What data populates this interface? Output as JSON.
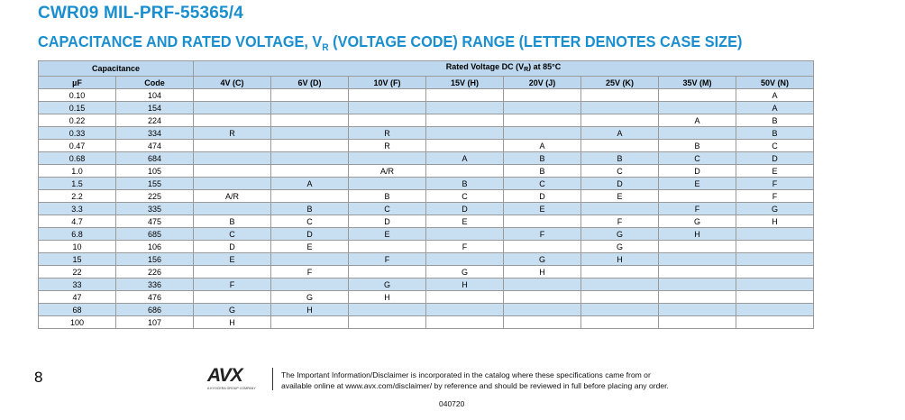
{
  "header": {
    "title": "CWR09 MIL-PRF-55365/4",
    "subtitle_prefix": "CAPACITANCE AND RATED VOLTAGE, V",
    "subtitle_sub": "R",
    "subtitle_suffix": " (VOLTAGE CODE) RANGE (LETTER DENOTES CASE SIZE)"
  },
  "table": {
    "group_capacitance": "Capacitance",
    "group_voltage_prefix": "Rated Voltage DC (V",
    "group_voltage_sub": "R",
    "group_voltage_suffix": ") at 85°C",
    "columns": [
      "µF",
      "Code",
      "4V (C)",
      "6V (D)",
      "10V (F)",
      "15V (H)",
      "20V (J)",
      "25V (K)",
      "35V (M)",
      "50V (N)"
    ],
    "rows": [
      [
        "0.10",
        "104",
        "",
        "",
        "",
        "",
        "",
        "",
        "",
        "A"
      ],
      [
        "0.15",
        "154",
        "",
        "",
        "",
        "",
        "",
        "",
        "",
        "A"
      ],
      [
        "0.22",
        "224",
        "",
        "",
        "",
        "",
        "",
        "",
        "A",
        "B"
      ],
      [
        "0.33",
        "334",
        "R",
        "",
        "R",
        "",
        "",
        "A",
        "",
        "B"
      ],
      [
        "0.47",
        "474",
        "",
        "",
        "R",
        "",
        "A",
        "",
        "B",
        "C"
      ],
      [
        "0.68",
        "684",
        "",
        "",
        "",
        "A",
        "B",
        "B",
        "C",
        "D"
      ],
      [
        "1.0",
        "105",
        "",
        "",
        "A/R",
        "",
        "B",
        "C",
        "D",
        "E"
      ],
      [
        "1.5",
        "155",
        "",
        "A",
        "",
        "B",
        "C",
        "D",
        "E",
        "F"
      ],
      [
        "2.2",
        "225",
        "A/R",
        "",
        "B",
        "C",
        "D",
        "E",
        "",
        "F"
      ],
      [
        "3.3",
        "335",
        "",
        "B",
        "C",
        "D",
        "E",
        "",
        "F",
        "G"
      ],
      [
        "4.7",
        "475",
        "B",
        "C",
        "D",
        "E",
        "",
        "F",
        "G",
        "H"
      ],
      [
        "6.8",
        "685",
        "C",
        "D",
        "E",
        "",
        "F",
        "G",
        "H",
        ""
      ],
      [
        "10",
        "106",
        "D",
        "E",
        "",
        "F",
        "",
        "G",
        "",
        ""
      ],
      [
        "15",
        "156",
        "E",
        "",
        "F",
        "",
        "G",
        "H",
        "",
        ""
      ],
      [
        "22",
        "226",
        "",
        "F",
        "",
        "G",
        "H",
        "",
        "",
        ""
      ],
      [
        "33",
        "336",
        "F",
        "",
        "G",
        "H",
        "",
        "",
        "",
        ""
      ],
      [
        "47",
        "476",
        "",
        "G",
        "H",
        "",
        "",
        "",
        "",
        ""
      ],
      [
        "68",
        "686",
        "G",
        "H",
        "",
        "",
        "",
        "",
        "",
        ""
      ],
      [
        "100",
        "107",
        "H",
        "",
        "",
        "",
        "",
        "",
        "",
        ""
      ]
    ]
  },
  "footer": {
    "page_number": "8",
    "logo_text": "AVX",
    "logo_subtext": "A KYOCERA GROUP COMPANY",
    "disclaimer_line1": "The Important Information/Disclaimer is incorporated in the catalog where these specifications came from or",
    "disclaimer_line2": "available online at www.avx.com/disclaimer/ by reference and should be reviewed in full before placing any order.",
    "doc_code": "040720"
  },
  "colors": {
    "title_blue": "#1a8fd0",
    "header_fill": "#bcd7ee",
    "row_shade": "#c8dff2"
  }
}
